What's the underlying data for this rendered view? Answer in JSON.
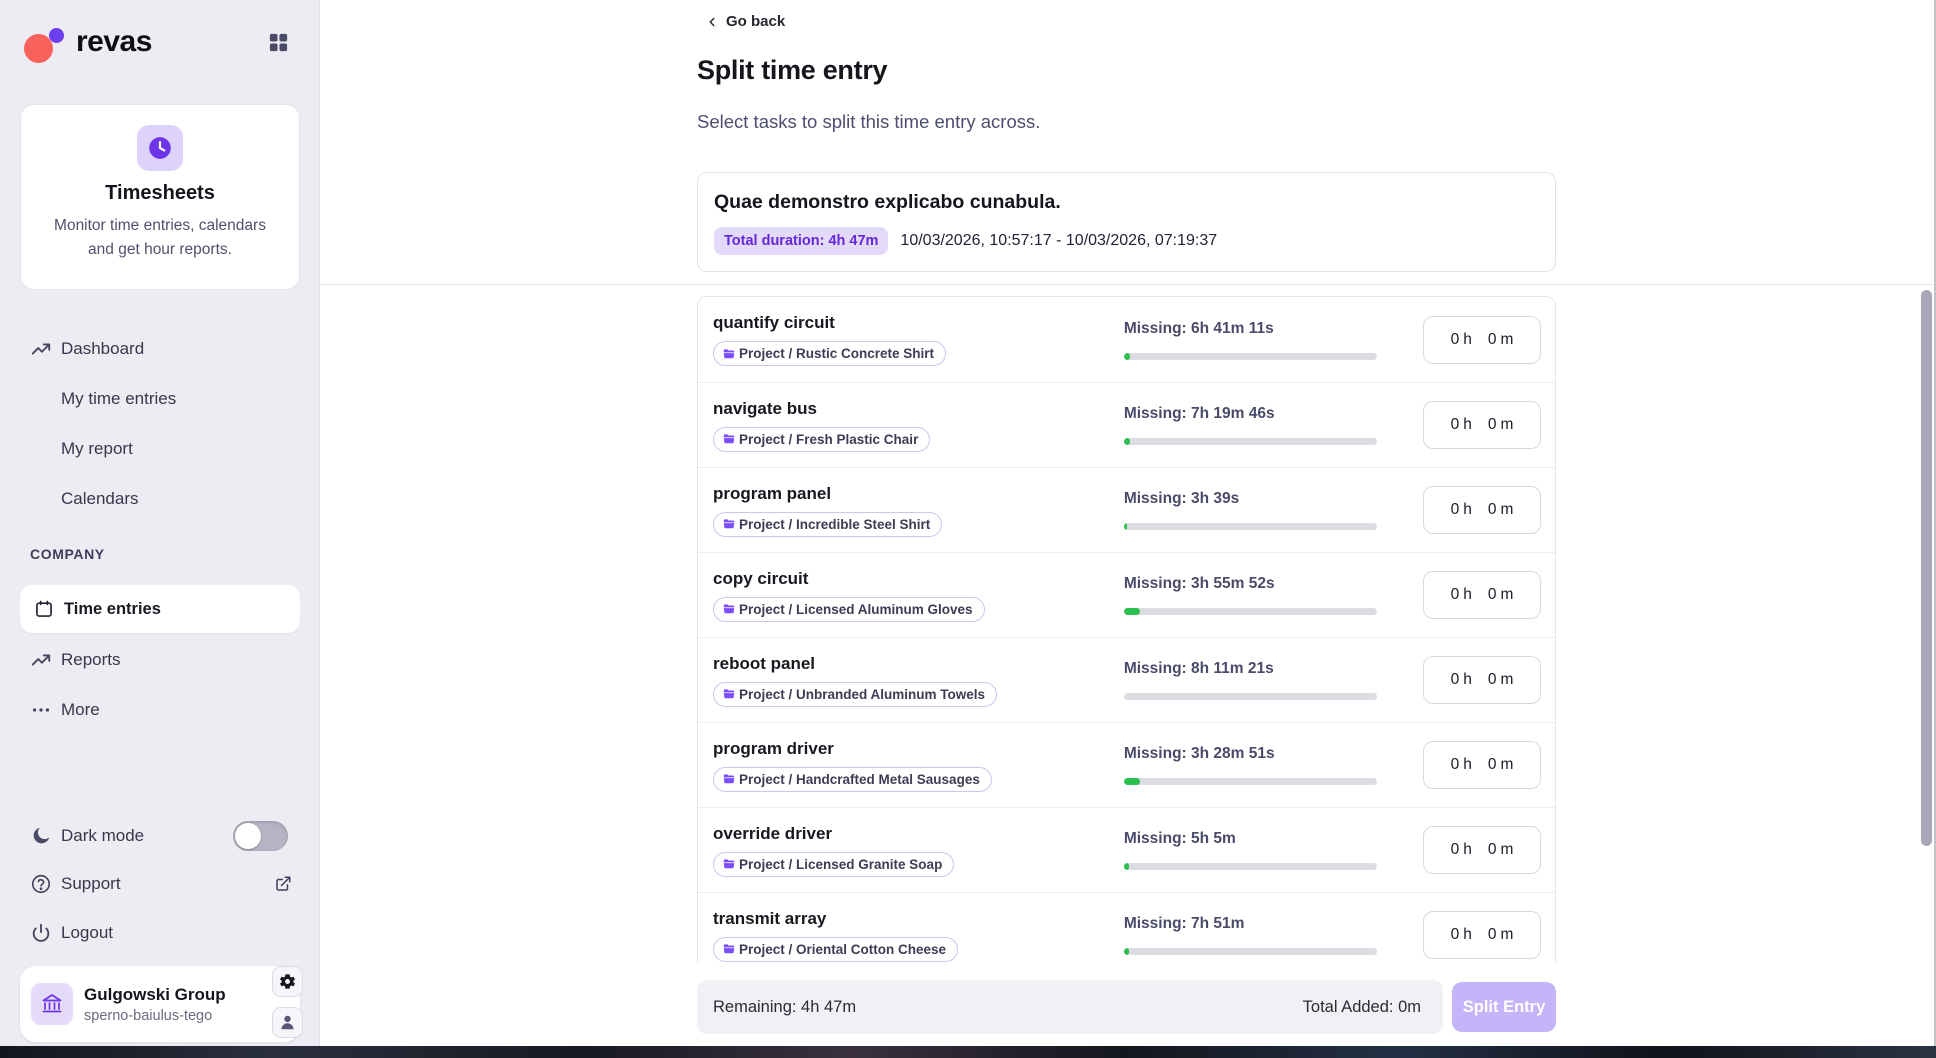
{
  "colors": {
    "accent_purple": "#6d35e8",
    "badge_bg": "#e3d9f9",
    "progress_green": "#2abf4e",
    "sidebar_bg": "#edecf2",
    "logo_coral": "#f9625c",
    "logo_purple": "#6d3ef0",
    "split_button_bg": "#c5b5f8"
  },
  "sidebar": {
    "brand": "revas",
    "widget": {
      "title": "Timesheets",
      "description": "Monitor time entries, calendars and get hour reports."
    },
    "nav": [
      {
        "label": "Dashboard"
      },
      {
        "label": "My time entries"
      },
      {
        "label": "My report"
      },
      {
        "label": "Calendars"
      }
    ],
    "company_label": "COMPANY",
    "company_nav": [
      {
        "label": "Time entries",
        "active": true
      },
      {
        "label": "Reports"
      },
      {
        "label": "More"
      }
    ],
    "dark_mode_label": "Dark mode",
    "dark_mode_state": "off",
    "support_label": "Support",
    "logout_label": "Logout",
    "workspace": {
      "name": "Gulgowski Group",
      "slug": "sperno-baiulus-tego"
    }
  },
  "main": {
    "back_label": "Go back",
    "title": "Split time entry",
    "subtitle": "Select tasks to split this time entry across.",
    "entry": {
      "name": "Quae demonstro explicabo cunabula.",
      "duration_badge": "Total duration: 4h 47m",
      "range": "10/03/2026, 10:57:17 - 10/03/2026, 07:19:37"
    },
    "hours_unit": "h",
    "minutes_unit": "m",
    "tasks": [
      {
        "name": "quantify circuit",
        "project": "Project / Rustic Concrete Shirt",
        "missing": "Missing: 6h 41m 11s",
        "progress_pct": 2.5,
        "hours": "0",
        "minutes": "0"
      },
      {
        "name": "navigate bus",
        "project": "Project / Fresh Plastic Chair",
        "missing": "Missing: 7h 19m 46s",
        "progress_pct": 2.5,
        "hours": "0",
        "minutes": "0"
      },
      {
        "name": "program panel",
        "project": "Project / Incredible Steel Shirt",
        "missing": "Missing: 3h 39s",
        "progress_pct": 1.2,
        "hours": "0",
        "minutes": "0"
      },
      {
        "name": "copy circuit",
        "project": "Project / Licensed Aluminum Gloves",
        "missing": "Missing: 3h 55m 52s",
        "progress_pct": 6.5,
        "hours": "0",
        "minutes": "0"
      },
      {
        "name": "reboot panel",
        "project": "Project / Unbranded Aluminum Towels",
        "missing": "Missing: 8h 11m 21s",
        "progress_pct": 0,
        "hours": "0",
        "minutes": "0"
      },
      {
        "name": "program driver",
        "project": "Project / Handcrafted Metal Sausages",
        "missing": "Missing: 3h 28m 51s",
        "progress_pct": 6.5,
        "hours": "0",
        "minutes": "0"
      },
      {
        "name": "override driver",
        "project": "Project / Licensed Granite Soap",
        "missing": "Missing: 5h 5m",
        "progress_pct": 2.2,
        "hours": "0",
        "minutes": "0"
      },
      {
        "name": "transmit array",
        "project": "Project / Oriental Cotton Cheese",
        "missing": "Missing: 7h 51m",
        "progress_pct": 2.2,
        "hours": "0",
        "minutes": "0"
      }
    ],
    "footer": {
      "remaining": "Remaining: 4h 47m",
      "total_added": "Total Added: 0m",
      "split_label": "Split Entry"
    }
  }
}
